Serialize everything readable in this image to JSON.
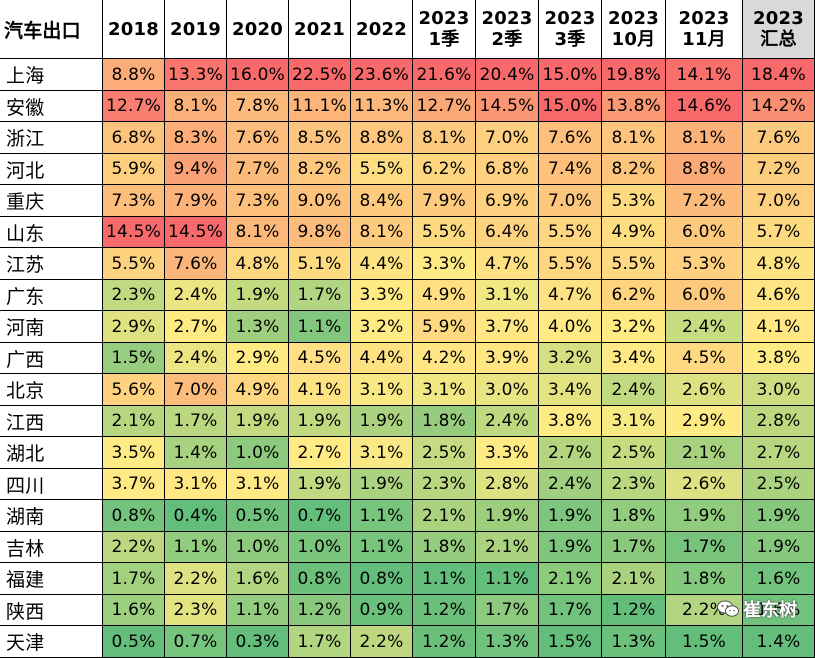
{
  "chart_data": {
    "type": "table",
    "title": "汽车出口",
    "columns": [
      {
        "top": "2018",
        "bottom": ""
      },
      {
        "top": "2019",
        "bottom": ""
      },
      {
        "top": "2020",
        "bottom": ""
      },
      {
        "top": "2021",
        "bottom": ""
      },
      {
        "top": "2022",
        "bottom": ""
      },
      {
        "top": "2023",
        "bottom": "1季"
      },
      {
        "top": "2023",
        "bottom": "2季"
      },
      {
        "top": "2023",
        "bottom": "3季"
      },
      {
        "top": "2023",
        "bottom": "10月"
      },
      {
        "top": "2023",
        "bottom": "11月"
      },
      {
        "top": "2023",
        "bottom": "汇总"
      }
    ],
    "rows": [
      {
        "region": "上海",
        "values": [
          "8.8%",
          "13.3%",
          "16.0%",
          "22.5%",
          "23.6%",
          "21.6%",
          "20.4%",
          "15.0%",
          "19.8%",
          "14.1%",
          "18.4%"
        ]
      },
      {
        "region": "安徽",
        "values": [
          "12.7%",
          "8.1%",
          "7.8%",
          "11.1%",
          "11.3%",
          "12.7%",
          "14.5%",
          "15.0%",
          "13.8%",
          "14.6%",
          "14.2%"
        ]
      },
      {
        "region": "浙江",
        "values": [
          "6.8%",
          "8.3%",
          "7.6%",
          "8.5%",
          "8.8%",
          "8.1%",
          "7.0%",
          "7.6%",
          "8.1%",
          "8.1%",
          "7.6%"
        ]
      },
      {
        "region": "河北",
        "values": [
          "5.9%",
          "9.4%",
          "7.7%",
          "8.2%",
          "5.5%",
          "6.2%",
          "6.8%",
          "7.4%",
          "8.2%",
          "8.8%",
          "7.2%"
        ]
      },
      {
        "region": "重庆",
        "values": [
          "7.3%",
          "7.9%",
          "7.3%",
          "9.0%",
          "8.4%",
          "7.9%",
          "6.9%",
          "7.0%",
          "5.3%",
          "7.2%",
          "7.0%"
        ]
      },
      {
        "region": "山东",
        "values": [
          "14.5%",
          "14.5%",
          "8.1%",
          "9.8%",
          "8.1%",
          "5.5%",
          "6.4%",
          "5.5%",
          "4.9%",
          "6.0%",
          "5.7%"
        ]
      },
      {
        "region": "江苏",
        "values": [
          "5.5%",
          "7.6%",
          "4.8%",
          "5.1%",
          "4.4%",
          "3.3%",
          "4.7%",
          "5.5%",
          "5.5%",
          "5.3%",
          "4.8%"
        ]
      },
      {
        "region": "广东",
        "values": [
          "2.3%",
          "2.4%",
          "1.9%",
          "1.7%",
          "3.3%",
          "4.9%",
          "3.1%",
          "4.7%",
          "6.2%",
          "6.0%",
          "4.6%"
        ]
      },
      {
        "region": "河南",
        "values": [
          "2.9%",
          "2.7%",
          "1.3%",
          "1.1%",
          "3.2%",
          "5.9%",
          "3.7%",
          "4.0%",
          "3.2%",
          "2.4%",
          "4.1%"
        ]
      },
      {
        "region": "广西",
        "values": [
          "1.5%",
          "2.4%",
          "2.9%",
          "4.5%",
          "4.4%",
          "4.2%",
          "3.9%",
          "3.2%",
          "3.4%",
          "4.5%",
          "3.8%"
        ]
      },
      {
        "region": "北京",
        "values": [
          "5.6%",
          "7.0%",
          "4.9%",
          "4.1%",
          "3.1%",
          "3.1%",
          "3.0%",
          "3.4%",
          "2.4%",
          "2.6%",
          "3.0%"
        ]
      },
      {
        "region": "江西",
        "values": [
          "2.1%",
          "1.7%",
          "1.9%",
          "1.9%",
          "1.9%",
          "1.8%",
          "2.4%",
          "3.8%",
          "3.1%",
          "2.9%",
          "2.8%"
        ]
      },
      {
        "region": "湖北",
        "values": [
          "3.5%",
          "1.4%",
          "1.0%",
          "2.7%",
          "3.1%",
          "2.5%",
          "3.3%",
          "2.7%",
          "2.5%",
          "2.1%",
          "2.7%"
        ]
      },
      {
        "region": "四川",
        "values": [
          "3.7%",
          "3.1%",
          "3.1%",
          "1.9%",
          "1.9%",
          "2.3%",
          "2.8%",
          "2.4%",
          "2.3%",
          "2.6%",
          "2.5%"
        ]
      },
      {
        "region": "湖南",
        "values": [
          "0.8%",
          "0.4%",
          "0.5%",
          "0.7%",
          "1.1%",
          "2.1%",
          "1.9%",
          "1.9%",
          "1.8%",
          "1.9%",
          "1.9%"
        ]
      },
      {
        "region": "吉林",
        "values": [
          "2.2%",
          "1.1%",
          "1.0%",
          "1.0%",
          "1.1%",
          "1.8%",
          "2.1%",
          "1.9%",
          "1.7%",
          "1.7%",
          "1.9%"
        ]
      },
      {
        "region": "福建",
        "values": [
          "1.7%",
          "2.2%",
          "1.6%",
          "0.8%",
          "0.8%",
          "1.1%",
          "1.1%",
          "2.1%",
          "2.1%",
          "1.8%",
          "1.6%"
        ]
      },
      {
        "region": "陕西",
        "values": [
          "1.6%",
          "2.3%",
          "1.1%",
          "1.2%",
          "0.9%",
          "1.2%",
          "1.7%",
          "1.7%",
          "1.2%",
          "2.2%",
          "1.6%"
        ]
      },
      {
        "region": "天津",
        "values": [
          "0.5%",
          "0.7%",
          "0.3%",
          "1.7%",
          "2.2%",
          "1.2%",
          "1.3%",
          "1.5%",
          "1.3%",
          "1.5%",
          "1.4%"
        ]
      }
    ],
    "color_scale": {
      "low": "#63be7b",
      "mid": "#ffeb84",
      "high": "#f8696b"
    },
    "header_colors": {
      "summary": "#d9d9d9"
    }
  },
  "watermark": {
    "text": "崔东树",
    "icon": "wechat-icon"
  }
}
